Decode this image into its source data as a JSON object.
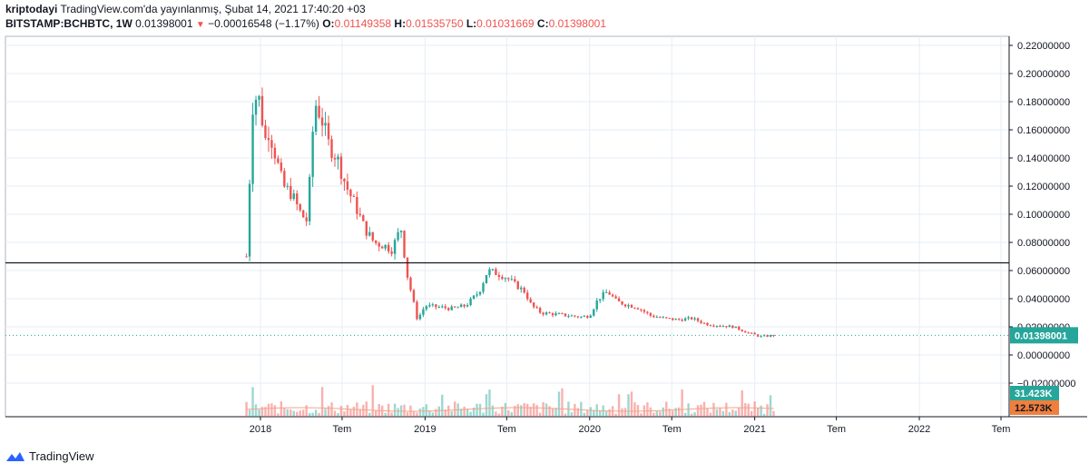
{
  "header": {
    "author": "kriptodayi",
    "published": "TradingView.com'da yayınlanmış, Şubat 14, 2021 17:40:20 +03",
    "symbol": "BITSTAMP:BCHBTC, 1W",
    "last": "0.01398001",
    "change": "−0.00016548 (−1.17%)",
    "o_label": "O:",
    "o": "0.01149358",
    "h_label": "H:",
    "h": "0.01535750",
    "l_label": "L:",
    "l": "0.01031669",
    "c_label": "C:",
    "c": "0.01398001"
  },
  "footer": {
    "brand": "TradingView"
  },
  "colors": {
    "up": "#26a69a",
    "down": "#ef5350",
    "hline": "#131722",
    "grid": "#e6eef5",
    "vol_ma": "#f4a582"
  },
  "chart_data": {
    "type": "candlestick",
    "ylim": [
      -0.03,
      0.225
    ],
    "y_ticks": [
      "0.22000000",
      "0.20000000",
      "0.18000000",
      "0.16000000",
      "0.14000000",
      "0.12000000",
      "0.10000000",
      "0.08000000",
      "0.06000000",
      "0.04000000",
      "0.02000000",
      "0.00000000",
      "−0.02000000"
    ],
    "y_tick_values": [
      0.22,
      0.2,
      0.18,
      0.16,
      0.14,
      0.12,
      0.1,
      0.08,
      0.06,
      0.04,
      0.02,
      0.0,
      -0.02
    ],
    "x_ticks": [
      "2018",
      "Tem",
      "2019",
      "Tem",
      "2020",
      "Tem",
      "2021",
      "Tem",
      "2022",
      "Tem"
    ],
    "x_tick_dates": [
      "2018-01-01",
      "2018-07-01",
      "2019-01-01",
      "2019-07-01",
      "2020-01-01",
      "2020-07-01",
      "2021-01-01",
      "2021-07-01",
      "2022-01-01",
      "2022-07-01"
    ],
    "horizontal_line": 0.0655,
    "last_price": 0.01398001,
    "last_price_label": "0.01398001",
    "volume_labels": [
      "31.423K",
      "12.573K"
    ],
    "price_path": [
      [
        "2017-12-01",
        0.07
      ],
      [
        "2017-12-10",
        0.14
      ],
      [
        "2017-12-18",
        0.2
      ],
      [
        "2017-12-25",
        0.17
      ],
      [
        "2018-01-01",
        0.19
      ],
      [
        "2018-01-08",
        0.15
      ],
      [
        "2018-01-20",
        0.16
      ],
      [
        "2018-02-05",
        0.14
      ],
      [
        "2018-02-20",
        0.12
      ],
      [
        "2018-03-10",
        0.115
      ],
      [
        "2018-04-01",
        0.1
      ],
      [
        "2018-04-15",
        0.095
      ],
      [
        "2018-05-01",
        0.18
      ],
      [
        "2018-05-15",
        0.17
      ],
      [
        "2018-06-01",
        0.15
      ],
      [
        "2018-06-20",
        0.14
      ],
      [
        "2018-07-10",
        0.12
      ],
      [
        "2018-08-01",
        0.105
      ],
      [
        "2018-08-20",
        0.09
      ],
      [
        "2018-09-10",
        0.08
      ],
      [
        "2018-10-01",
        0.078
      ],
      [
        "2018-10-20",
        0.075
      ],
      [
        "2018-11-01",
        0.085
      ],
      [
        "2018-11-10",
        0.09
      ],
      [
        "2018-11-20",
        0.06
      ],
      [
        "2018-12-01",
        0.045
      ],
      [
        "2018-12-15",
        0.025
      ],
      [
        "2019-01-01",
        0.035
      ],
      [
        "2019-02-01",
        0.034
      ],
      [
        "2019-03-01",
        0.033
      ],
      [
        "2019-04-01",
        0.035
      ],
      [
        "2019-05-01",
        0.045
      ],
      [
        "2019-05-20",
        0.06
      ],
      [
        "2019-06-10",
        0.058
      ],
      [
        "2019-07-01",
        0.055
      ],
      [
        "2019-07-20",
        0.05
      ],
      [
        "2019-08-10",
        0.045
      ],
      [
        "2019-08-25",
        0.035
      ],
      [
        "2019-09-15",
        0.03
      ],
      [
        "2019-10-15",
        0.029
      ],
      [
        "2019-11-15",
        0.028
      ],
      [
        "2019-12-15",
        0.027
      ],
      [
        "2020-01-01",
        0.028
      ],
      [
        "2020-01-20",
        0.04
      ],
      [
        "2020-02-10",
        0.045
      ],
      [
        "2020-03-01",
        0.038
      ],
      [
        "2020-03-20",
        0.036
      ],
      [
        "2020-04-15",
        0.034
      ],
      [
        "2020-05-15",
        0.028
      ],
      [
        "2020-06-15",
        0.026
      ],
      [
        "2020-07-15",
        0.025
      ],
      [
        "2020-08-15",
        0.026
      ],
      [
        "2020-09-15",
        0.022
      ],
      [
        "2020-10-15",
        0.021
      ],
      [
        "2020-11-15",
        0.02
      ],
      [
        "2020-12-15",
        0.016
      ],
      [
        "2021-01-15",
        0.013
      ],
      [
        "2021-02-14",
        0.014
      ]
    ]
  }
}
